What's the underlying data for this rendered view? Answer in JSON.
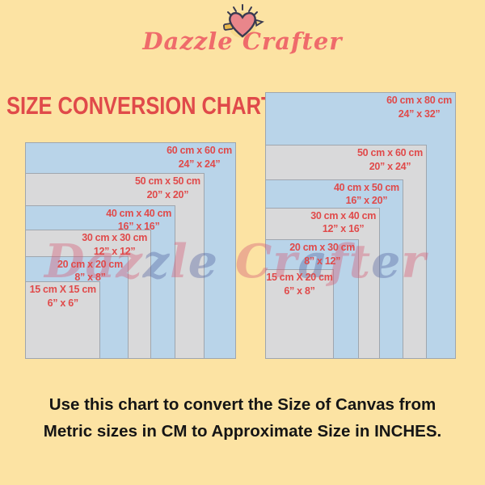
{
  "brand": "Dazzle Crafter",
  "title": "SIZE CONVERSION CHART",
  "watermark": "Dazzle Crafter",
  "footer": {
    "line1": "Use this chart to convert the Size of Canvas  from",
    "line2": "Metric sizes in CM to Approximate Size in INCHES."
  },
  "colors": {
    "background": "#FCE3A3",
    "rect_blue": "#B9D4E9",
    "rect_gray": "#D9D9DA",
    "label_red": "#E04A4A",
    "title_red": "#E04A4A",
    "brand_coral": "#EF6B6B",
    "footer_black": "#151515"
  },
  "charts": {
    "left": {
      "name": "square-canvas-sizes",
      "items": [
        {
          "cm": "60 cm x 60 cm",
          "in": "24” x 24”"
        },
        {
          "cm": "50 cm x 50 cm",
          "in": "20” x 20”"
        },
        {
          "cm": "40 cm x 40 cm",
          "in": "16” x 16”"
        },
        {
          "cm": "30 cm x 30 cm",
          "in": "12” x 12”"
        },
        {
          "cm": "20 cm x 20 cm",
          "in": "8” x 8”"
        },
        {
          "cm": "15 cm X 15 cm",
          "in": "6” x 6”"
        }
      ]
    },
    "right": {
      "name": "rectangular-canvas-sizes",
      "items": [
        {
          "cm": "60 cm x 80 cm",
          "in": "24” x 32”"
        },
        {
          "cm": "50 cm x 60 cm",
          "in": "20” x 24”"
        },
        {
          "cm": "40 cm x 50 cm",
          "in": "16” x 20”"
        },
        {
          "cm": "30 cm x 40 cm",
          "in": "12” x 16”"
        },
        {
          "cm": "20 cm x 30 cm",
          "in": "8” x 12”"
        },
        {
          "cm": "15 cm X 20 cm",
          "in": "6” x 8”"
        }
      ]
    }
  },
  "chart_data": {
    "type": "table",
    "title": "SIZE CONVERSION CHART",
    "description": "Canvas size conversion from centimetres to approximate inches, shown as two sets of nested rectangles (square canvases and rectangular canvases).",
    "columns": [
      "metric_size_cm",
      "approx_size_inches"
    ],
    "square_canvases": [
      [
        "60 cm x 60 cm",
        "24\" x 24\""
      ],
      [
        "50 cm x 50 cm",
        "20\" x 20\""
      ],
      [
        "40 cm x 40 cm",
        "16\" x 16\""
      ],
      [
        "30 cm x 30 cm",
        "12\" x 12\""
      ],
      [
        "20 cm x 20 cm",
        "8\" x 8\""
      ],
      [
        "15 cm X 15 cm",
        "6\" x 6\""
      ]
    ],
    "rectangular_canvases": [
      [
        "60 cm x 80 cm",
        "24\" x 32\""
      ],
      [
        "50 cm x 60 cm",
        "20\" x 24\""
      ],
      [
        "40 cm x 50 cm",
        "16\" x 20\""
      ],
      [
        "30 cm x 40 cm",
        "12\" x 16\""
      ],
      [
        "20 cm x 30 cm",
        "8\" x 12\""
      ],
      [
        "15 cm X 20 cm",
        "6\" x 8\""
      ]
    ],
    "layout_hints": {
      "nesting_anchor": "bottom-left",
      "fill_alternation": [
        "light-blue",
        "light-gray"
      ],
      "labels_position": "top-right inside each rectangle"
    }
  }
}
